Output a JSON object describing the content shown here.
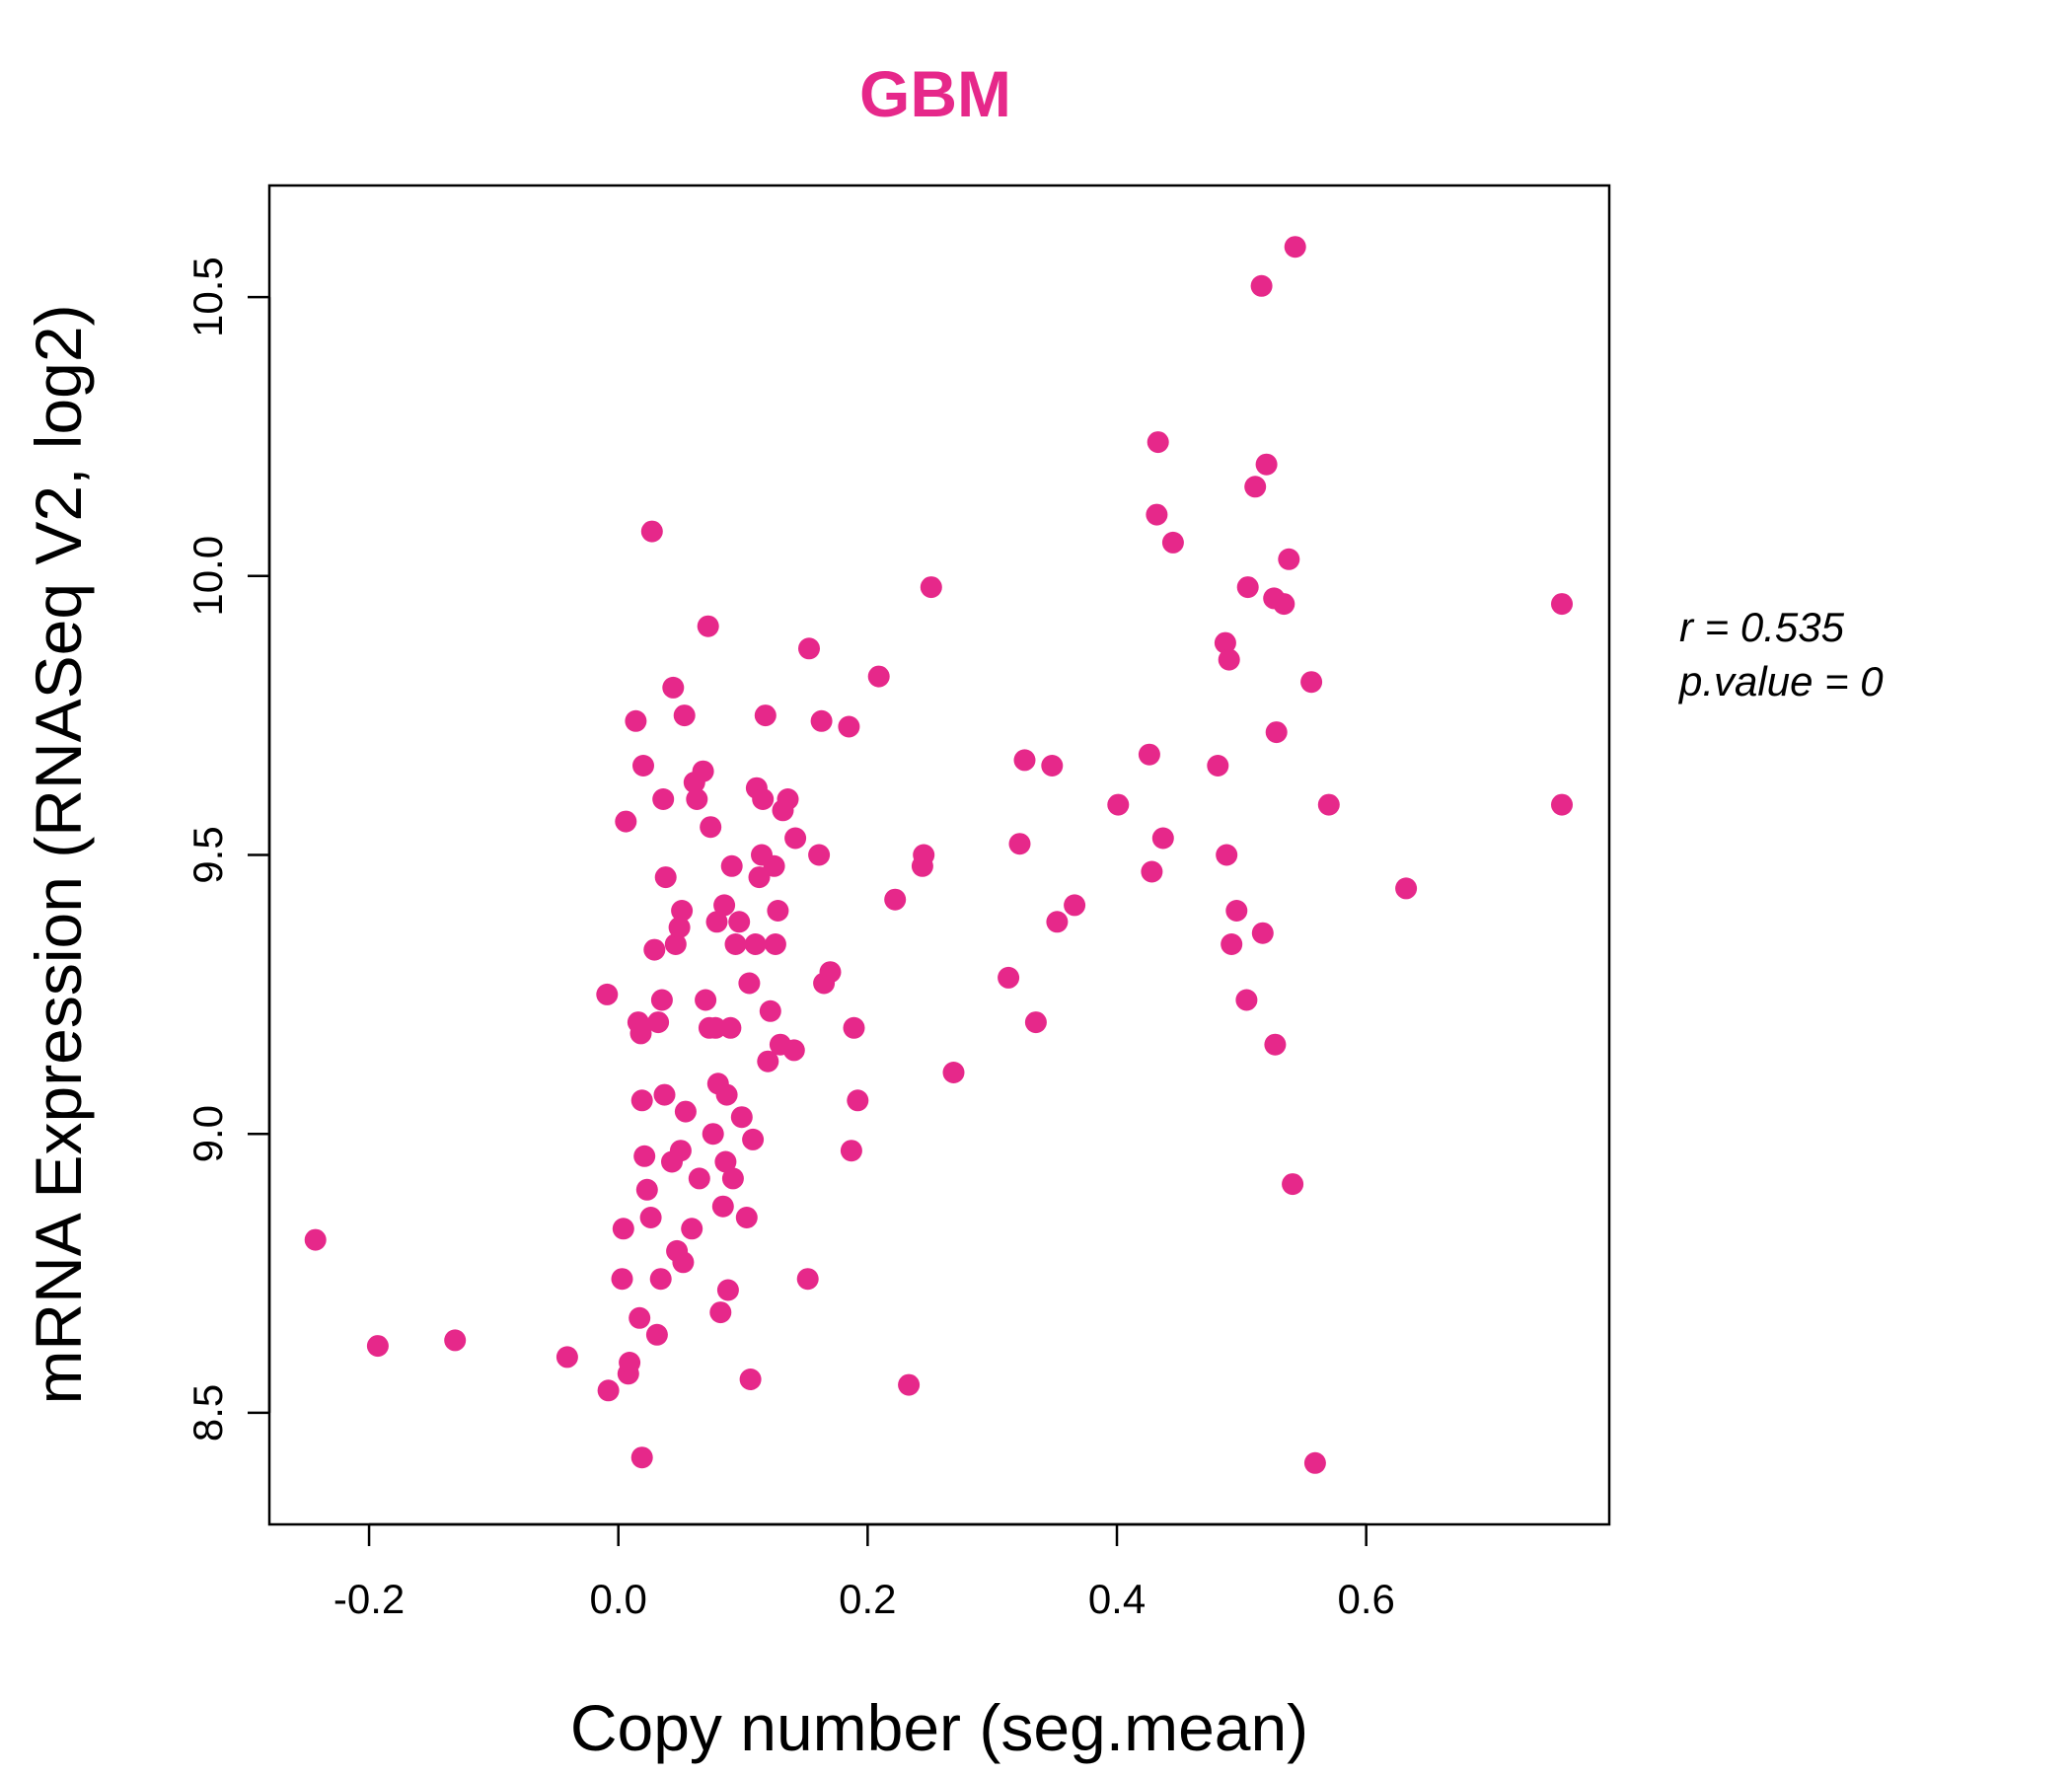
{
  "colors": {
    "accent": "#E6288A",
    "axis": "#000000",
    "background": "#FFFFFF"
  },
  "chart_data": {
    "type": "scatter",
    "title": "GBM",
    "xlabel": "Copy number (seg.mean)",
    "ylabel": "mRNA Expression (RNASeq V2, log2)",
    "xlim": [
      -0.28,
      0.795
    ],
    "ylim": [
      8.3,
      10.7
    ],
    "xticks": [
      -0.2,
      0.0,
      0.2,
      0.4,
      0.6
    ],
    "xtick_labels": [
      "-0.2",
      "0.0",
      "0.2",
      "0.4",
      "0.6"
    ],
    "yticks": [
      8.5,
      9.0,
      9.5,
      10.0,
      10.5
    ],
    "ytick_labels": [
      "8.5",
      "9.0",
      "9.5",
      "10.0",
      "10.5"
    ],
    "grid": false,
    "stats": {
      "r_label": "r = 0.535",
      "p_label": "p.value = 0"
    },
    "x": [
      -0.243,
      -0.193,
      -0.131,
      -0.041,
      -0.009,
      -0.008,
      0.003,
      0.004,
      0.006,
      0.008,
      0.009,
      0.014,
      0.016,
      0.017,
      0.018,
      0.019,
      0.019,
      0.02,
      0.021,
      0.023,
      0.026,
      0.027,
      0.029,
      0.031,
      0.032,
      0.034,
      0.035,
      0.036,
      0.037,
      0.038,
      0.043,
      0.044,
      0.046,
      0.047,
      0.049,
      0.05,
      0.051,
      0.052,
      0.053,
      0.054,
      0.059,
      0.061,
      0.063,
      0.065,
      0.068,
      0.07,
      0.072,
      0.073,
      0.074,
      0.076,
      0.078,
      0.079,
      0.08,
      0.082,
      0.084,
      0.085,
      0.086,
      0.087,
      0.088,
      0.09,
      0.091,
      0.092,
      0.094,
      0.097,
      0.099,
      0.103,
      0.105,
      0.106,
      0.108,
      0.11,
      0.111,
      0.113,
      0.115,
      0.116,
      0.118,
      0.12,
      0.122,
      0.125,
      0.126,
      0.128,
      0.13,
      0.132,
      0.136,
      0.141,
      0.142,
      0.152,
      0.153,
      0.161,
      0.163,
      0.165,
      0.17,
      0.185,
      0.187,
      0.189,
      0.192,
      0.209,
      0.222,
      0.233,
      0.244,
      0.245,
      0.251,
      0.269,
      0.313,
      0.322,
      0.326,
      0.335,
      0.348,
      0.352,
      0.366,
      0.401,
      0.426,
      0.428,
      0.432,
      0.433,
      0.437,
      0.445,
      0.481,
      0.487,
      0.488,
      0.49,
      0.492,
      0.496,
      0.504,
      0.505,
      0.511,
      0.516,
      0.517,
      0.52,
      0.526,
      0.527,
      0.528,
      0.534,
      0.538,
      0.541,
      0.543,
      0.556,
      0.559,
      0.57,
      0.632,
      0.757,
      0.757
    ],
    "y": [
      8.81,
      8.62,
      8.63,
      8.6,
      9.25,
      8.54,
      8.74,
      8.83,
      9.56,
      8.57,
      8.59,
      9.74,
      9.2,
      8.67,
      9.18,
      9.06,
      8.42,
      9.66,
      8.96,
      8.9,
      8.85,
      10.08,
      9.33,
      8.64,
      9.2,
      8.74,
      9.24,
      9.6,
      9.07,
      9.46,
      8.95,
      9.8,
      9.34,
      8.79,
      9.37,
      8.97,
      9.4,
      8.77,
      9.75,
      9.04,
      8.83,
      9.63,
      9.6,
      8.92,
      9.65,
      9.24,
      9.91,
      9.19,
      9.55,
      9.0,
      9.19,
      9.38,
      9.09,
      8.68,
      8.87,
      9.41,
      8.95,
      9.07,
      8.72,
      9.19,
      9.48,
      8.92,
      9.34,
      9.38,
      9.03,
      8.85,
      9.27,
      8.56,
      8.99,
      9.34,
      9.62,
      9.46,
      9.5,
      9.6,
      9.75,
      9.13,
      9.22,
      9.48,
      9.34,
      9.4,
      9.16,
      9.58,
      9.6,
      9.15,
      9.53,
      8.74,
      9.87,
      9.5,
      9.74,
      9.27,
      9.29,
      9.73,
      8.97,
      9.19,
      9.06,
      9.82,
      9.42,
      8.55,
      9.48,
      9.5,
      9.98,
      9.11,
      9.28,
      9.52,
      9.67,
      9.2,
      9.66,
      9.38,
      9.41,
      9.59,
      9.68,
      9.47,
      10.11,
      10.24,
      9.53,
      10.06,
      9.66,
      9.88,
      9.5,
      9.85,
      9.34,
      9.4,
      9.24,
      9.98,
      10.16,
      10.52,
      9.36,
      10.2,
      9.96,
      9.16,
      9.72,
      9.95,
      10.03,
      8.91,
      10.59,
      9.81,
      8.41,
      9.59,
      9.44,
      9.95,
      9.59
    ]
  }
}
